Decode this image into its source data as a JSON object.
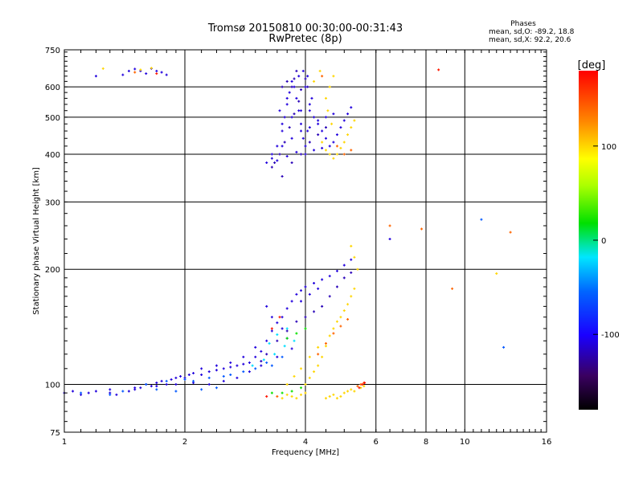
{
  "chart_data": {
    "type": "scatter",
    "title": "Tromsø 20150810 00:30:00-00:31:43",
    "subtitle": "RwPretec (8p)",
    "xlabel": "Frequency [MHz]",
    "ylabel": "Stationary phase Virtual Height [km]",
    "x_scale": "log",
    "y_scale": "log",
    "xlim": [
      1,
      16
    ],
    "ylim": [
      75,
      750
    ],
    "x_ticks": [
      1,
      2,
      4,
      6,
      8,
      10,
      16
    ],
    "x_tick_labels": [
      "1",
      "2",
      "4",
      "6",
      "8",
      "10",
      "16"
    ],
    "y_ticks": [
      75,
      100,
      200,
      300,
      400,
      500,
      600,
      750
    ],
    "y_tick_labels": [
      "75",
      "100",
      "200",
      "300",
      "400",
      "500",
      "600",
      "750"
    ],
    "grid": true,
    "stats": {
      "heading": "Phases",
      "line_o": "mean, sd,O: -89.2, 18.8",
      "line_x": "mean, sd,X:  92.2, 20.6"
    },
    "colorbar": {
      "label": "[deg]",
      "range": [
        -180,
        180
      ],
      "ticks": [
        100,
        0,
        -100
      ],
      "tick_labels": [
        "100",
        "0",
        "-100"
      ]
    },
    "series": [
      {
        "color_value": -110,
        "points": [
          [
            1.0,
            95
          ],
          [
            1.05,
            96
          ],
          [
            1.1,
            94
          ],
          [
            1.15,
            95
          ],
          [
            1.2,
            96
          ],
          [
            1.3,
            95
          ],
          [
            1.35,
            94
          ],
          [
            1.45,
            96
          ],
          [
            1.5,
            97
          ],
          [
            1.55,
            98
          ],
          [
            1.6,
            100
          ],
          [
            1.65,
            99
          ],
          [
            1.7,
            101
          ],
          [
            1.75,
            102
          ],
          [
            1.8,
            100
          ],
          [
            1.85,
            103
          ],
          [
            1.9,
            104
          ],
          [
            1.95,
            105
          ],
          [
            2.0,
            104
          ],
          [
            2.05,
            106
          ],
          [
            2.1,
            107
          ],
          [
            2.2,
            106
          ],
          [
            2.3,
            108
          ],
          [
            2.4,
            109
          ],
          [
            2.5,
            110
          ],
          [
            2.6,
            111
          ],
          [
            2.7,
            112
          ],
          [
            2.8,
            113
          ],
          [
            2.9,
            114
          ],
          [
            3.0,
            118
          ],
          [
            3.1,
            122
          ],
          [
            3.2,
            130
          ],
          [
            3.3,
            138
          ],
          [
            3.4,
            145
          ],
          [
            3.5,
            150
          ],
          [
            3.6,
            158
          ],
          [
            3.7,
            165
          ],
          [
            3.8,
            172
          ],
          [
            3.9,
            176
          ],
          [
            4.0,
            180
          ],
          [
            4.2,
            184
          ],
          [
            4.4,
            188
          ],
          [
            4.6,
            192
          ],
          [
            4.8,
            198
          ],
          [
            5.0,
            205
          ],
          [
            5.2,
            212
          ],
          [
            3.2,
            160
          ],
          [
            3.3,
            150
          ],
          [
            3.5,
            140
          ],
          [
            3.6,
            132
          ],
          [
            3.7,
            124
          ],
          [
            3.4,
            118
          ],
          [
            3.1,
            112
          ],
          [
            2.9,
            108
          ],
          [
            2.7,
            104
          ],
          [
            2.5,
            102
          ],
          [
            2.3,
            100
          ],
          [
            2.1,
            101
          ],
          [
            1.9,
            100
          ],
          [
            1.7,
            99
          ],
          [
            1.5,
            98
          ],
          [
            1.3,
            97
          ],
          [
            3.9,
            165
          ],
          [
            4.1,
            172
          ],
          [
            4.3,
            178
          ],
          [
            2.2,
            110
          ],
          [
            2.4,
            112
          ],
          [
            2.6,
            114
          ],
          [
            2.8,
            118
          ],
          [
            3.0,
            125
          ],
          [
            1.2,
            640
          ],
          [
            1.4,
            645
          ],
          [
            1.45,
            660
          ],
          [
            1.5,
            668
          ],
          [
            1.55,
            660
          ],
          [
            1.6,
            650
          ],
          [
            1.65,
            670
          ],
          [
            1.7,
            660
          ],
          [
            1.75,
            655
          ],
          [
            1.8,
            645
          ],
          [
            3.2,
            380
          ],
          [
            3.3,
            390
          ],
          [
            3.4,
            420
          ],
          [
            3.5,
            460
          ],
          [
            3.55,
            500
          ],
          [
            3.6,
            540
          ],
          [
            3.65,
            580
          ],
          [
            3.7,
            620
          ],
          [
            3.75,
            600
          ],
          [
            3.8,
            560
          ],
          [
            3.85,
            520
          ],
          [
            3.9,
            480
          ],
          [
            3.95,
            440
          ],
          [
            4.0,
            420
          ],
          [
            4.05,
            460
          ],
          [
            4.1,
            520
          ],
          [
            4.15,
            560
          ],
          [
            4.2,
            500
          ],
          [
            4.3,
            480
          ],
          [
            4.4,
            460
          ],
          [
            4.5,
            440
          ],
          [
            4.6,
            420
          ],
          [
            4.7,
            430
          ],
          [
            4.8,
            450
          ],
          [
            4.9,
            470
          ],
          [
            5.0,
            490
          ],
          [
            5.1,
            510
          ],
          [
            5.2,
            530
          ],
          [
            3.4,
            385
          ],
          [
            3.6,
            395
          ],
          [
            3.8,
            405
          ],
          [
            4.0,
            400
          ],
          [
            4.2,
            410
          ],
          [
            4.4,
            415
          ],
          [
            3.5,
            480
          ],
          [
            3.7,
            500
          ],
          [
            3.9,
            520
          ],
          [
            4.1,
            540
          ],
          [
            3.45,
            520
          ],
          [
            3.6,
            560
          ],
          [
            4.0,
            600
          ],
          [
            4.05,
            640
          ],
          [
            3.95,
            660
          ],
          [
            3.85,
            640
          ],
          [
            3.3,
            400
          ],
          [
            3.5,
            420
          ],
          [
            3.7,
            440
          ],
          [
            3.9,
            460
          ],
          [
            4.1,
            470
          ],
          [
            4.3,
            490
          ],
          [
            4.5,
            500
          ],
          [
            4.7,
            510
          ],
          [
            6.5,
            240
          ]
        ]
      },
      {
        "color_value": -120,
        "points": [
          [
            3.3,
            370
          ],
          [
            3.35,
            380
          ],
          [
            3.45,
            400
          ],
          [
            3.55,
            430
          ],
          [
            3.65,
            470
          ],
          [
            3.75,
            510
          ],
          [
            3.85,
            550
          ],
          [
            3.9,
            590
          ],
          [
            4.0,
            630
          ],
          [
            4.05,
            600
          ],
          [
            3.5,
            350
          ],
          [
            3.7,
            380
          ],
          [
            3.9,
            400
          ],
          [
            4.1,
            430
          ],
          [
            4.3,
            450
          ],
          [
            4.5,
            470
          ],
          [
            3.1,
            115
          ],
          [
            3.2,
            120
          ],
          [
            3.4,
            130
          ],
          [
            3.6,
            138
          ],
          [
            3.8,
            146
          ],
          [
            4.0,
            150
          ],
          [
            4.2,
            155
          ],
          [
            4.4,
            160
          ],
          [
            4.6,
            170
          ],
          [
            4.8,
            180
          ],
          [
            5.0,
            190
          ],
          [
            5.2,
            196
          ],
          [
            3.7,
            600
          ],
          [
            3.75,
            630
          ],
          [
            3.8,
            660
          ],
          [
            3.6,
            620
          ],
          [
            3.5,
            600
          ]
        ]
      },
      {
        "color_value": -60,
        "points": [
          [
            1.6,
            100
          ],
          [
            1.8,
            102
          ],
          [
            2.0,
            103
          ],
          [
            2.1,
            102
          ],
          [
            2.3,
            104
          ],
          [
            2.5,
            105
          ],
          [
            2.6,
            106
          ],
          [
            2.8,
            108
          ],
          [
            3.0,
            110
          ],
          [
            3.2,
            114
          ],
          [
            1.9,
            96
          ],
          [
            2.2,
            97
          ],
          [
            2.4,
            98
          ],
          [
            1.4,
            96
          ],
          [
            1.7,
            97
          ],
          [
            1.3,
            94
          ],
          [
            1.1,
            95
          ],
          [
            3.3,
            112
          ],
          [
            3.5,
            118
          ],
          [
            11.0,
            270
          ],
          [
            12.5,
            125
          ]
        ]
      },
      {
        "color_value": -20,
        "points": [
          [
            2.95,
            112
          ],
          [
            3.15,
            116
          ],
          [
            3.35,
            120
          ],
          [
            3.55,
            126
          ],
          [
            3.75,
            130
          ],
          [
            3.6,
            140
          ],
          [
            3.4,
            135
          ],
          [
            3.25,
            128
          ]
        ]
      },
      {
        "color_value": 20,
        "points": [
          [
            3.5,
            95
          ],
          [
            3.7,
            96
          ],
          [
            3.9,
            98
          ],
          [
            3.6,
            132
          ],
          [
            3.8,
            136
          ],
          [
            4.0,
            140
          ],
          [
            3.3,
            95
          ]
        ]
      },
      {
        "color_value": 100,
        "points": [
          [
            3.5,
            92
          ],
          [
            3.6,
            94
          ],
          [
            3.7,
            93
          ],
          [
            3.8,
            92
          ],
          [
            3.9,
            94
          ],
          [
            4.0,
            95
          ],
          [
            4.5,
            92
          ],
          [
            4.6,
            93
          ],
          [
            4.7,
            94
          ],
          [
            4.8,
            92
          ],
          [
            4.9,
            93
          ],
          [
            5.0,
            95
          ],
          [
            5.1,
            96
          ],
          [
            5.2,
            97
          ],
          [
            5.3,
            96
          ],
          [
            5.5,
            98
          ],
          [
            5.6,
            99
          ],
          [
            4.0,
            100
          ],
          [
            4.1,
            104
          ],
          [
            4.2,
            108
          ],
          [
            4.3,
            112
          ],
          [
            4.4,
            118
          ],
          [
            4.5,
            126
          ],
          [
            4.6,
            134
          ],
          [
            4.7,
            140
          ],
          [
            4.8,
            146
          ],
          [
            4.9,
            150
          ],
          [
            5.0,
            156
          ],
          [
            5.1,
            162
          ],
          [
            5.2,
            170
          ],
          [
            5.3,
            178
          ],
          [
            4.4,
            430
          ],
          [
            4.5,
            410
          ],
          [
            4.6,
            400
          ],
          [
            4.7,
            390
          ],
          [
            4.8,
            400
          ],
          [
            4.9,
            415
          ],
          [
            5.0,
            430
          ],
          [
            5.1,
            450
          ],
          [
            5.2,
            470
          ],
          [
            5.3,
            490
          ],
          [
            4.5,
            560
          ],
          [
            4.6,
            600
          ],
          [
            4.7,
            640
          ],
          [
            4.55,
            520
          ],
          [
            4.65,
            480
          ],
          [
            1.25,
            670
          ],
          [
            1.55,
            665
          ],
          [
            1.65,
            672
          ],
          [
            5.2,
            230
          ],
          [
            5.3,
            215
          ],
          [
            5.4,
            200
          ],
          [
            4.2,
            620
          ],
          [
            4.35,
            660
          ],
          [
            12.0,
            195
          ],
          [
            3.6,
            100
          ],
          [
            3.75,
            105
          ],
          [
            3.9,
            110
          ],
          [
            4.1,
            118
          ],
          [
            4.3,
            125
          ]
        ]
      },
      {
        "color_value": 140,
        "points": [
          [
            4.3,
            120
          ],
          [
            4.5,
            128
          ],
          [
            4.7,
            136
          ],
          [
            4.9,
            142
          ],
          [
            5.1,
            148
          ],
          [
            4.8,
            420
          ],
          [
            5.0,
            400
          ],
          [
            5.2,
            410
          ],
          [
            5.4,
            99
          ],
          [
            5.5,
            100
          ],
          [
            5.6,
            101
          ],
          [
            3.4,
            93
          ],
          [
            6.5,
            260
          ],
          [
            7.8,
            255
          ],
          [
            9.3,
            178
          ],
          [
            13.0,
            250
          ],
          [
            1.5,
            655
          ],
          [
            4.4,
            640
          ]
        ]
      },
      {
        "color_value": 170,
        "points": [
          [
            5.45,
            98
          ],
          [
            5.55,
            100
          ],
          [
            5.62,
            101
          ],
          [
            3.2,
            93
          ],
          [
            8.6,
            665
          ],
          [
            1.7,
            650
          ],
          [
            3.3,
            140
          ],
          [
            3.45,
            150
          ]
        ]
      }
    ]
  }
}
